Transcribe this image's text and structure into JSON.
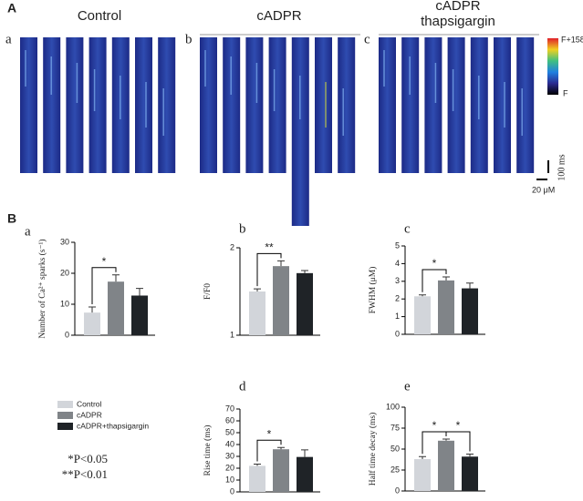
{
  "figure": {
    "panel_a": {
      "label": "A",
      "images": [
        {
          "label": "a",
          "title_lines": [
            "Control"
          ]
        },
        {
          "label": "b",
          "title_lines": [
            "cADPR"
          ]
        },
        {
          "label": "c",
          "title_lines": [
            "cADPR",
            "thapsigargin"
          ]
        }
      ],
      "colorbar_top": "F+158",
      "colorbar_bottom": "F",
      "time_scale": "100 ms",
      "space_scale": "20 μM"
    },
    "panel_b_label": "B",
    "footnotes": [
      "*P<0.05",
      "**P<0.01"
    ]
  },
  "chart_data": [
    {
      "type": "bar",
      "panel": "a",
      "ylabel": "Number of Ca²⁺ sparks (s⁻¹)",
      "ylim": [
        0,
        30
      ],
      "yticks": [
        0,
        10,
        20,
        30
      ],
      "series": [
        {
          "name": "Control",
          "color": "#d2d5da",
          "values": [
            7.3
          ],
          "errors": [
            1.8
          ]
        },
        {
          "name": "cADPR",
          "color": "#808488",
          "values": [
            17.3
          ],
          "errors": [
            2.2
          ]
        },
        {
          "name": "cADPR+thapsigargin",
          "color": "#1f2327",
          "values": [
            12.8
          ],
          "errors": [
            2.3
          ]
        }
      ],
      "annotations": [
        {
          "text": "*",
          "between": [
            "Control",
            "cADPR"
          ]
        }
      ]
    },
    {
      "type": "bar",
      "panel": "b",
      "ylabel": "F/F0",
      "ylim": [
        1,
        2
      ],
      "yticks": [
        1,
        2
      ],
      "series": [
        {
          "name": "Control",
          "color": "#d2d5da",
          "values": [
            1.5
          ],
          "errors": [
            0.03
          ]
        },
        {
          "name": "cADPR",
          "color": "#808488",
          "values": [
            1.79
          ],
          "errors": [
            0.06
          ]
        },
        {
          "name": "cADPR+thapsigargin",
          "color": "#1f2327",
          "values": [
            1.71
          ],
          "errors": [
            0.03
          ]
        }
      ],
      "annotations": [
        {
          "text": "**",
          "between": [
            "Control",
            "cADPR"
          ]
        }
      ]
    },
    {
      "type": "bar",
      "panel": "c",
      "ylabel": "FWHM (μM)",
      "ylim": [
        0,
        5
      ],
      "yticks": [
        0,
        1,
        2,
        3,
        4,
        5
      ],
      "series": [
        {
          "name": "Control",
          "color": "#d2d5da",
          "values": [
            2.15
          ],
          "errors": [
            0.08
          ]
        },
        {
          "name": "cADPR",
          "color": "#808488",
          "values": [
            3.05
          ],
          "errors": [
            0.2
          ]
        },
        {
          "name": "cADPR+thapsigargin",
          "color": "#1f2327",
          "values": [
            2.6
          ],
          "errors": [
            0.3
          ]
        }
      ],
      "annotations": [
        {
          "text": "*",
          "between": [
            "Control",
            "cADPR"
          ]
        }
      ]
    },
    {
      "type": "bar",
      "panel": "d",
      "ylabel": "Rise time (ms)",
      "ylim": [
        0,
        70
      ],
      "yticks": [
        0,
        10,
        20,
        30,
        40,
        50,
        60,
        70
      ],
      "series": [
        {
          "name": "Control",
          "color": "#d2d5da",
          "values": [
            22
          ],
          "errors": [
            1.5
          ]
        },
        {
          "name": "cADPR",
          "color": "#808488",
          "values": [
            36
          ],
          "errors": [
            1.5
          ]
        },
        {
          "name": "cADPR+thapsigargin",
          "color": "#1f2327",
          "values": [
            29.5
          ],
          "errors": [
            6
          ]
        }
      ],
      "annotations": [
        {
          "text": "*",
          "between": [
            "Control",
            "cADPR"
          ]
        }
      ]
    },
    {
      "type": "bar",
      "panel": "e",
      "ylabel": "Half time decay (ms)",
      "ylim": [
        0,
        100
      ],
      "yticks": [
        0,
        25,
        50,
        75,
        100
      ],
      "series": [
        {
          "name": "Control",
          "color": "#d2d5da",
          "values": [
            38
          ],
          "errors": [
            3
          ]
        },
        {
          "name": "cADPR",
          "color": "#808488",
          "values": [
            60
          ],
          "errors": [
            2
          ]
        },
        {
          "name": "cADPR+thapsigargin",
          "color": "#1f2327",
          "values": [
            41
          ],
          "errors": [
            3
          ]
        }
      ],
      "annotations": [
        {
          "text": "*",
          "between": [
            "Control",
            "cADPR"
          ]
        },
        {
          "text": "*",
          "between": [
            "cADPR",
            "cADPR+thapsigargin"
          ]
        }
      ]
    }
  ]
}
